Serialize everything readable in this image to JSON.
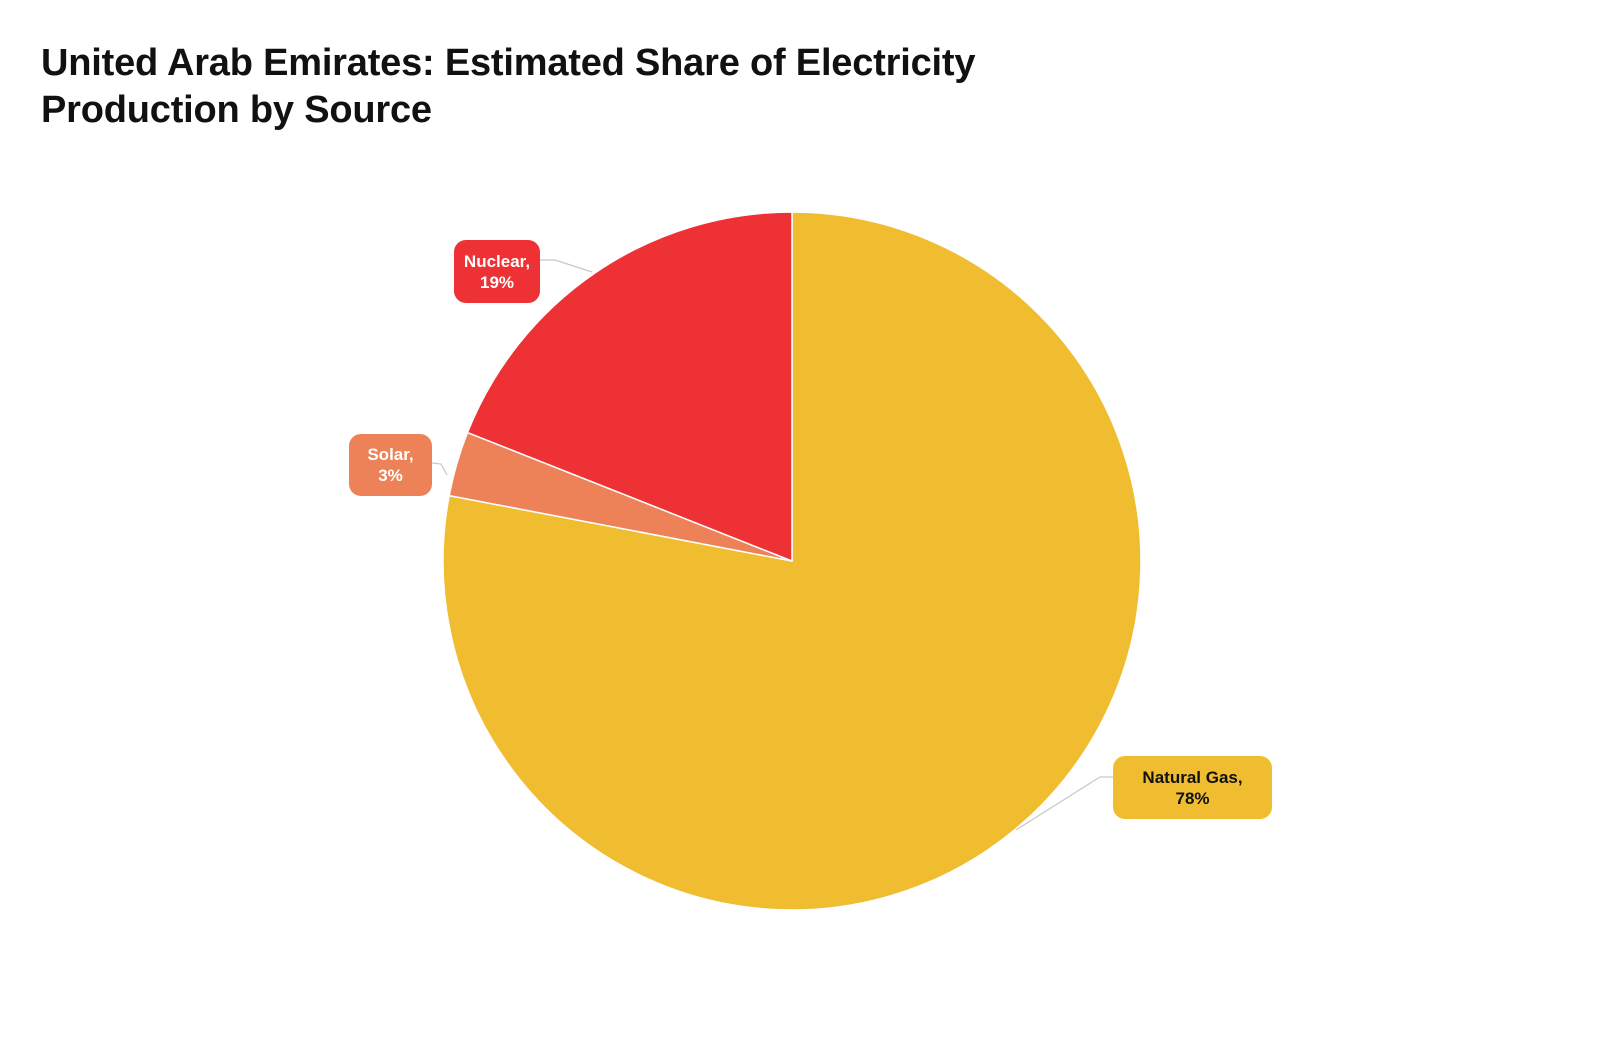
{
  "chart_data": {
    "type": "pie",
    "title": "United Arab Emirates: Estimated Share of Electricity Production by Source",
    "slices": [
      {
        "name": "Natural Gas",
        "value": 78,
        "label": "Natural Gas,",
        "value_label": "78%",
        "color": "#F0BC30",
        "text_color": "#111111"
      },
      {
        "name": "Solar",
        "value": 3,
        "label": "Solar,",
        "value_label": "3%",
        "color": "#ED8157",
        "text_color": "#ffffff"
      },
      {
        "name": "Nuclear",
        "value": 19,
        "label": "Nuclear,",
        "value_label": "19%",
        "color": "#EE3134",
        "text_color": "#ffffff"
      }
    ],
    "legend": "none"
  }
}
